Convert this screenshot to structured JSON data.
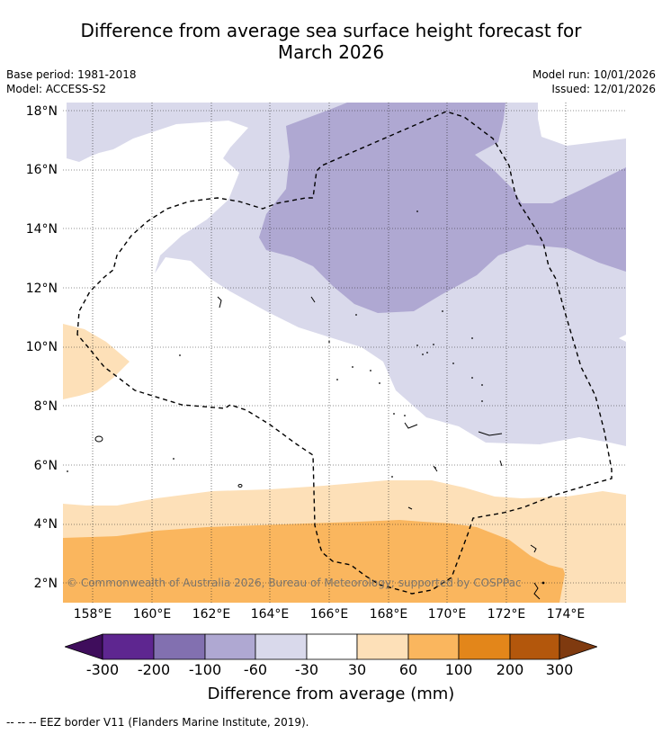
{
  "title_line1": "Difference from average sea surface height forecast for",
  "title_line2": "March 2026",
  "base_period": "Base period: 1981-2018",
  "model": "Model: ACCESS-S2",
  "model_run": "Model run: 10/01/2026",
  "issued": "Issued: 12/01/2026",
  "lat_labels": [
    "18°N",
    "16°N",
    "14°N",
    "12°N",
    "10°N",
    "8°N",
    "6°N",
    "4°N",
    "2°N"
  ],
  "lon_labels": [
    "158°E",
    "160°E",
    "162°E",
    "164°E",
    "166°E",
    "168°E",
    "170°E",
    "172°E",
    "174°E"
  ],
  "copyright": "© Commonwealth of Australia 2026, Bureau of Meteorology; supported by COSPPac",
  "colorbar": {
    "ticks": [
      "-300",
      "-200",
      "-100",
      "-60",
      "-30",
      "30",
      "60",
      "100",
      "200",
      "300"
    ],
    "colors": [
      "#3f0d5c",
      "#5e2690",
      "#8270b0",
      "#afa8d2",
      "#d9d9eb",
      "#ffffff",
      "#fde0b8",
      "#fab65e",
      "#e3861a",
      "#b3570c",
      "#7f3a0f"
    ],
    "label": "Difference from average (mm)"
  },
  "footnote": "--  --  -- EEZ border V11 (Flanders Marine Institute, 2019).",
  "legend_colors": {
    "band_m60_m30": "#d9d9eb",
    "band_m100_m60": "#afa8d2",
    "band_30_60": "#fde0b8",
    "band_60_100": "#fab65e"
  }
}
